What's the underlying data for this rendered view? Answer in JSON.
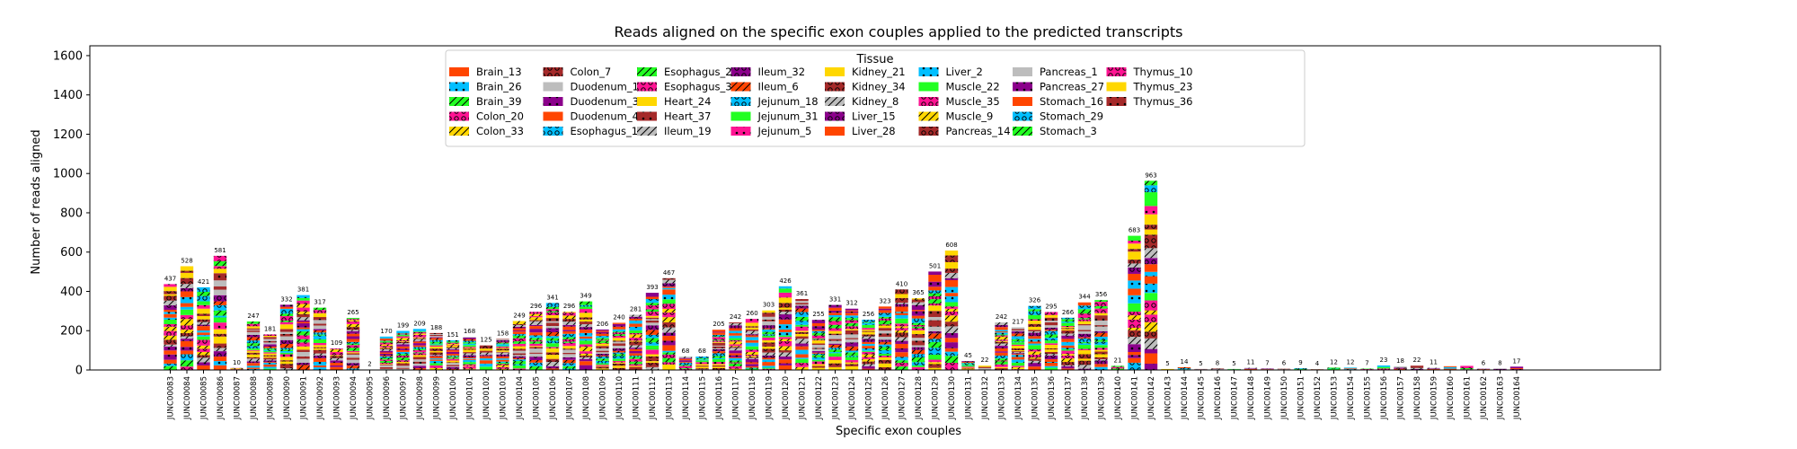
{
  "chart_data": {
    "type": "bar",
    "stacked": true,
    "title": "Reads aligned on the specific exon couples applied to the predicted transcripts",
    "xlabel": "Specific exon couples",
    "ylabel": "Number of reads aligned",
    "ylim": [
      0,
      1650
    ],
    "yticks": [
      0,
      200,
      400,
      600,
      800,
      1000,
      1200,
      1400,
      1600
    ],
    "grid": false,
    "legend": {
      "title": "Tissue",
      "placement": "top-center",
      "columns": 9,
      "entries": [
        {
          "name": "Brain_13",
          "color": "#ff4500",
          "hatch": "none"
        },
        {
          "name": "Brain_26",
          "color": "#00bfff",
          "hatch": "dots"
        },
        {
          "name": "Brain_39",
          "color": "#22ff22",
          "hatch": "slash"
        },
        {
          "name": "Colon_20",
          "color": "#ff1493",
          "hatch": "circles"
        },
        {
          "name": "Colon_33",
          "color": "#ffd700",
          "hatch": "slash"
        },
        {
          "name": "Colon_7",
          "color": "#a52a2a",
          "hatch": "circles"
        },
        {
          "name": "Duodenum_17",
          "color": "#bdbdbd",
          "hatch": "none"
        },
        {
          "name": "Duodenum_30",
          "color": "#8b008b",
          "hatch": "dots"
        },
        {
          "name": "Duodenum_4",
          "color": "#ff4500",
          "hatch": "none"
        },
        {
          "name": "Esophagus_12",
          "color": "#00bfff",
          "hatch": "circles"
        },
        {
          "name": "Esophagus_25",
          "color": "#22ff22",
          "hatch": "slash"
        },
        {
          "name": "Esophagus_38",
          "color": "#ff1493",
          "hatch": "circles"
        },
        {
          "name": "Heart_24",
          "color": "#ffd700",
          "hatch": "none"
        },
        {
          "name": "Heart_37",
          "color": "#a52a2a",
          "hatch": "dots"
        },
        {
          "name": "Ileum_19",
          "color": "#bdbdbd",
          "hatch": "slash"
        },
        {
          "name": "Ileum_32",
          "color": "#8b008b",
          "hatch": "circles"
        },
        {
          "name": "Ileum_6",
          "color": "#ff4500",
          "hatch": "slash"
        },
        {
          "name": "Jejunum_18",
          "color": "#00bfff",
          "hatch": "circles"
        },
        {
          "name": "Jejunum_31",
          "color": "#22ff22",
          "hatch": "none"
        },
        {
          "name": "Jejunum_5",
          "color": "#ff1493",
          "hatch": "dots"
        },
        {
          "name": "Kidney_21",
          "color": "#ffd700",
          "hatch": "none"
        },
        {
          "name": "Kidney_34",
          "color": "#a52a2a",
          "hatch": "circles"
        },
        {
          "name": "Kidney_8",
          "color": "#bdbdbd",
          "hatch": "slash"
        },
        {
          "name": "Liver_15",
          "color": "#8b008b",
          "hatch": "circles"
        },
        {
          "name": "Liver_28",
          "color": "#ff4500",
          "hatch": "none"
        },
        {
          "name": "Liver_2",
          "color": "#00bfff",
          "hatch": "dots"
        },
        {
          "name": "Muscle_22",
          "color": "#22ff22",
          "hatch": "none"
        },
        {
          "name": "Muscle_35",
          "color": "#ff1493",
          "hatch": "circles"
        },
        {
          "name": "Muscle_9",
          "color": "#ffd700",
          "hatch": "slash"
        },
        {
          "name": "Pancreas_14",
          "color": "#a52a2a",
          "hatch": "circles"
        },
        {
          "name": "Pancreas_1",
          "color": "#bdbdbd",
          "hatch": "none"
        },
        {
          "name": "Pancreas_27",
          "color": "#8b008b",
          "hatch": "dots"
        },
        {
          "name": "Stomach_16",
          "color": "#ff4500",
          "hatch": "none"
        },
        {
          "name": "Stomach_29",
          "color": "#00bfff",
          "hatch": "circles"
        },
        {
          "name": "Stomach_3",
          "color": "#22ff22",
          "hatch": "slash"
        },
        {
          "name": "Thymus_10",
          "color": "#ff1493",
          "hatch": "circles"
        },
        {
          "name": "Thymus_23",
          "color": "#ffd700",
          "hatch": "none"
        },
        {
          "name": "Thymus_36",
          "color": "#a52a2a",
          "hatch": "dots"
        }
      ]
    },
    "categories": [
      "JUNC00083",
      "JUNC00084",
      "JUNC00085",
      "JUNC00086",
      "JUNC00087",
      "JUNC00088",
      "JUNC00089",
      "JUNC00090",
      "JUNC00091",
      "JUNC00092",
      "JUNC00093",
      "JUNC00094",
      "JUNC00095",
      "JUNC00096",
      "JUNC00097",
      "JUNC00098",
      "JUNC00099",
      "JUNC00100",
      "JUNC00101",
      "JUNC00102",
      "JUNC00103",
      "JUNC00104",
      "JUNC00105",
      "JUNC00106",
      "JUNC00107",
      "JUNC00108",
      "JUNC00109",
      "JUNC00110",
      "JUNC00111",
      "JUNC00112",
      "JUNC00113",
      "JUNC00114",
      "JUNC00115",
      "JUNC00116",
      "JUNC00117",
      "JUNC00118",
      "JUNC00119",
      "JUNC00120",
      "JUNC00121",
      "JUNC00122",
      "JUNC00123",
      "JUNC00124",
      "JUNC00125",
      "JUNC00126",
      "JUNC00127",
      "JUNC00128",
      "JUNC00129",
      "JUNC00130",
      "JUNC00131",
      "JUNC00132",
      "JUNC00133",
      "JUNC00134",
      "JUNC00135",
      "JUNC00136",
      "JUNC00137",
      "JUNC00138",
      "JUNC00139",
      "JUNC00140",
      "JUNC00141",
      "JUNC00142",
      "JUNC00143",
      "JUNC00144",
      "JUNC00145",
      "JUNC00146",
      "JUNC00147",
      "JUNC00148",
      "JUNC00149",
      "JUNC00150",
      "JUNC00151",
      "JUNC00152",
      "JUNC00153",
      "JUNC00154",
      "JUNC00155",
      "JUNC00156",
      "JUNC00157",
      "JUNC00158",
      "JUNC00159",
      "JUNC00160",
      "JUNC00161",
      "JUNC00162",
      "JUNC00163",
      "JUNC00164"
    ],
    "totals": [
      437,
      528,
      421,
      581,
      10,
      247,
      181,
      332,
      381,
      317,
      109,
      265,
      2,
      170,
      199,
      209,
      188,
      151,
      168,
      125,
      158,
      249,
      296,
      341,
      296,
      349,
      206,
      240,
      281,
      393,
      467,
      68,
      68,
      205,
      242,
      260,
      303,
      426,
      361,
      255,
      331,
      312,
      256,
      323,
      410,
      365,
      501,
      608,
      45,
      22,
      242,
      217,
      326,
      295,
      266,
      344,
      356,
      21,
      683,
      963,
      5,
      14,
      5,
      8,
      5,
      11,
      7,
      6,
      9,
      4,
      12,
      12,
      7,
      23,
      18,
      22,
      11,
      19,
      21,
      6,
      8,
      17
    ],
    "label_hidden_categories": [
      "JUNC00160",
      "JUNC00161"
    ]
  }
}
